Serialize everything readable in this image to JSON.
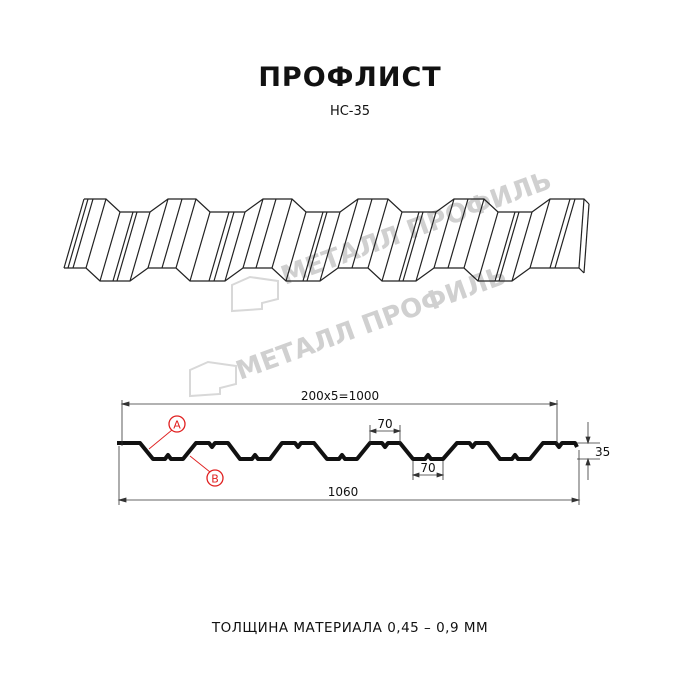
{
  "title": "ПРОФЛИСТ",
  "subtitle": "НС-35",
  "watermark": "МЕТАЛЛ ПРОФИЛЬ",
  "dimensions": {
    "pitch_total": "200x5=1000",
    "crest_width": "70",
    "trough_width": "70",
    "height": "35",
    "total_width": "1060"
  },
  "markers": [
    "A",
    "B"
  ],
  "thickness_label": "ТОЛЩИНА МАТЕРИАЛА 0,45 – 0,9 ММ",
  "colors": {
    "line": "#111111",
    "marker": "#e02020",
    "watermark": "#c8c8c8"
  }
}
